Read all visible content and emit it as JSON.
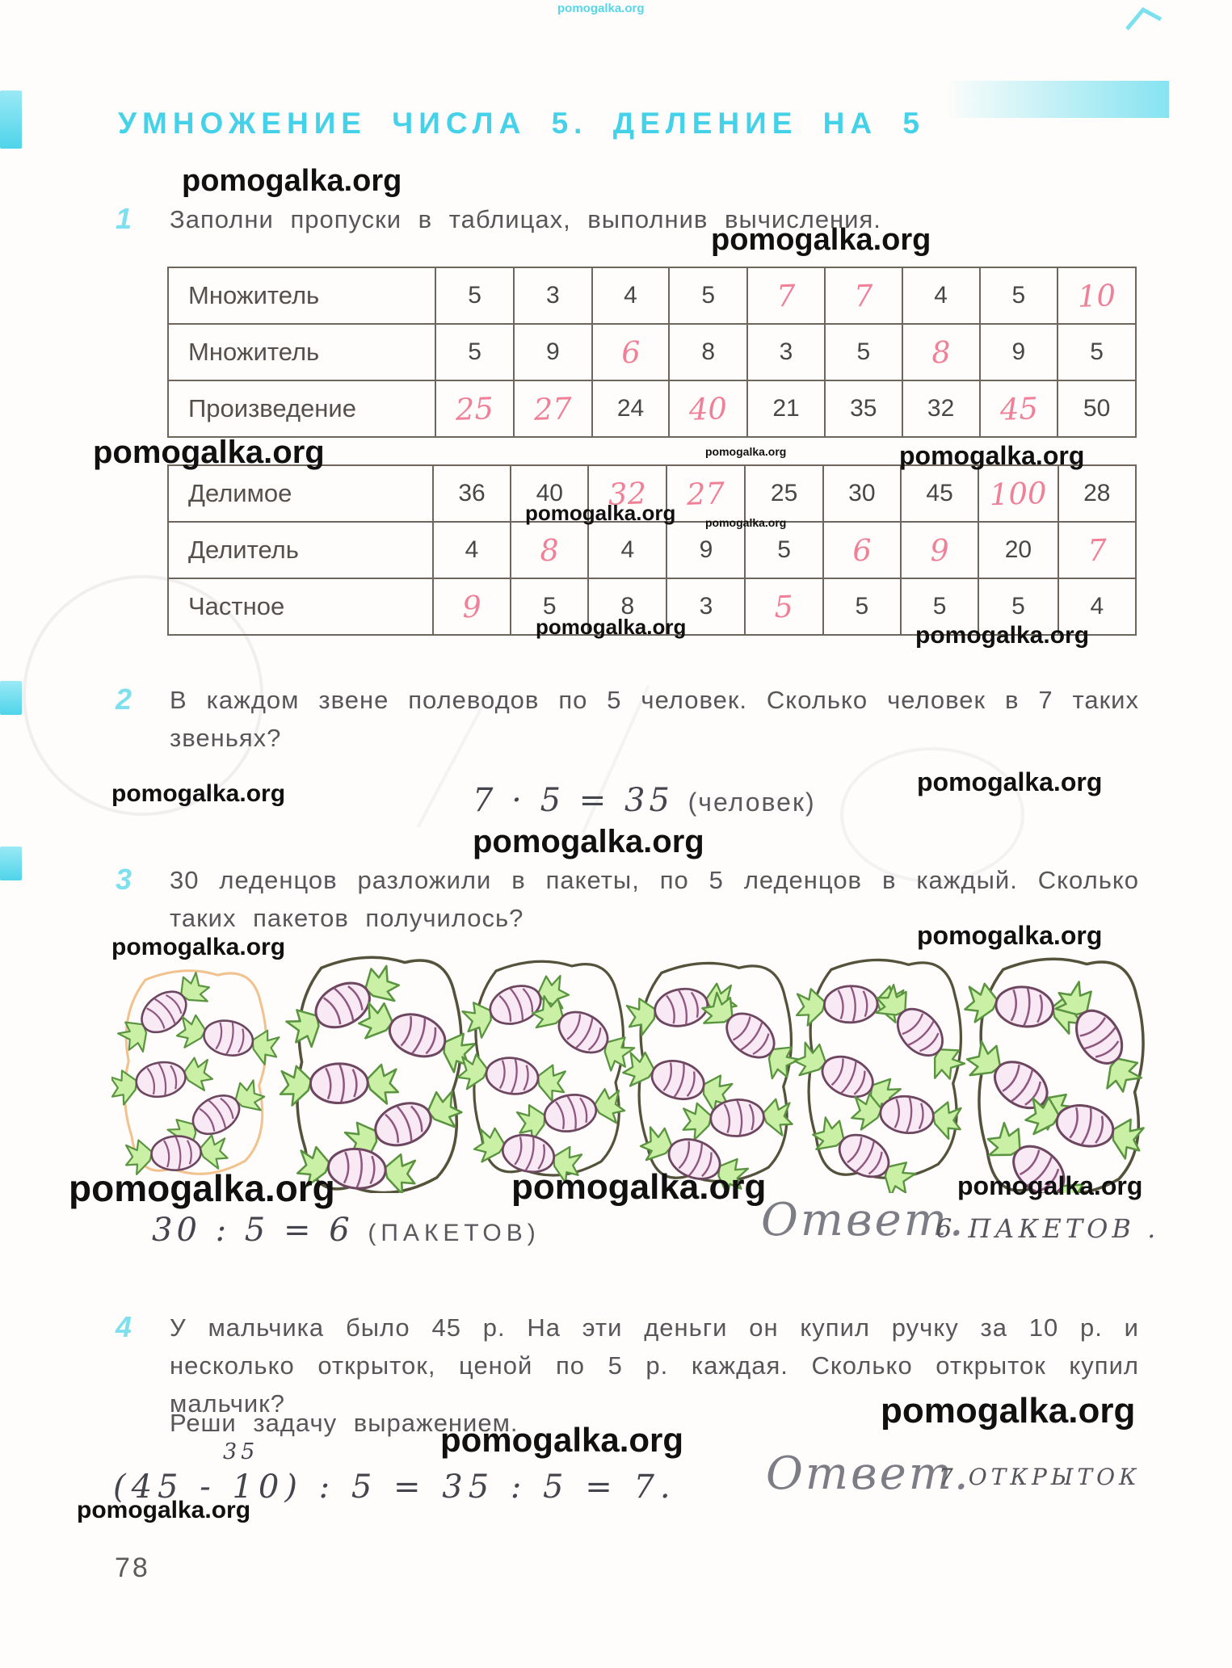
{
  "watermark": {
    "text": "pomogalka.org"
  },
  "header": {
    "title": "УМНОЖЕНИЕ ЧИСЛА 5. ДЕЛЕНИЕ НА 5"
  },
  "page": {
    "number": "78"
  },
  "tasks": {
    "t1": {
      "num": "1",
      "text": "Заполни пропуски в таблицах, выполнив вычисления."
    },
    "t2": {
      "num": "2",
      "text": "В каждом звене полеводов по 5 человек. Сколько человек в 7 таких звеньях?",
      "solution": "7 · 5 = 35",
      "solution_unit": "(человек)"
    },
    "t3": {
      "num": "3",
      "text": "30 леденцов разложили в пакеты, по 5 леденцов в каждый. Сколько таких пакетов получилось?",
      "solution": "30 : 5 = 6",
      "solution_unit": "(ПАКЕТОВ)",
      "answer_label": "Ответ.",
      "answer": "6 ПАКЕТОВ ."
    },
    "t4": {
      "num": "4",
      "text": "У мальчика было 45 р. На эти деньги он купил ручку за 10 р. и несколько открыток, ценой по 5 р. каждая. Сколько открыток купил мальчик?",
      "text2": "Реши задачу выражением.",
      "carry": "35",
      "solution": "(45 - 10) : 5 = 35 : 5 = 7.",
      "answer_label": "Ответ.",
      "answer": "7 ОТКРЫТОК"
    }
  },
  "table1": {
    "rows": [
      {
        "label": "Множитель",
        "cells": [
          {
            "v": "5",
            "h": false
          },
          {
            "v": "3",
            "h": false
          },
          {
            "v": "4",
            "h": false
          },
          {
            "v": "5",
            "h": false
          },
          {
            "v": "7",
            "h": true
          },
          {
            "v": "7",
            "h": true
          },
          {
            "v": "4",
            "h": false
          },
          {
            "v": "5",
            "h": false
          },
          {
            "v": "10",
            "h": true
          }
        ]
      },
      {
        "label": "Множитель",
        "cells": [
          {
            "v": "5",
            "h": false
          },
          {
            "v": "9",
            "h": false
          },
          {
            "v": "6",
            "h": true
          },
          {
            "v": "8",
            "h": false
          },
          {
            "v": "3",
            "h": false
          },
          {
            "v": "5",
            "h": false
          },
          {
            "v": "8",
            "h": true
          },
          {
            "v": "9",
            "h": false
          },
          {
            "v": "5",
            "h": false
          }
        ]
      },
      {
        "label": "Произведение",
        "cells": [
          {
            "v": "25",
            "h": true
          },
          {
            "v": "27",
            "h": true
          },
          {
            "v": "24",
            "h": false
          },
          {
            "v": "40",
            "h": true
          },
          {
            "v": "21",
            "h": false
          },
          {
            "v": "35",
            "h": false
          },
          {
            "v": "32",
            "h": false
          },
          {
            "v": "45",
            "h": true
          },
          {
            "v": "50",
            "h": false
          }
        ]
      }
    ]
  },
  "table2": {
    "rows": [
      {
        "label": "Делимое",
        "cells": [
          {
            "v": "36",
            "h": false
          },
          {
            "v": "40",
            "h": false
          },
          {
            "v": "32",
            "h": true
          },
          {
            "v": "27",
            "h": true
          },
          {
            "v": "25",
            "h": false
          },
          {
            "v": "30",
            "h": false
          },
          {
            "v": "45",
            "h": false
          },
          {
            "v": "100",
            "h": true
          },
          {
            "v": "28",
            "h": false
          }
        ]
      },
      {
        "label": "Делитель",
        "cells": [
          {
            "v": "4",
            "h": false
          },
          {
            "v": "8",
            "h": true
          },
          {
            "v": "4",
            "h": false
          },
          {
            "v": "9",
            "h": false
          },
          {
            "v": "5",
            "h": false
          },
          {
            "v": "6",
            "h": true
          },
          {
            "v": "9",
            "h": true
          },
          {
            "v": "20",
            "h": false
          },
          {
            "v": "7",
            "h": true
          }
        ]
      },
      {
        "label": "Частное",
        "cells": [
          {
            "v": "9",
            "h": true
          },
          {
            "v": "5",
            "h": false
          },
          {
            "v": "8",
            "h": false
          },
          {
            "v": "3",
            "h": false
          },
          {
            "v": "5",
            "h": true
          },
          {
            "v": "5",
            "h": false
          },
          {
            "v": "5",
            "h": false
          },
          {
            "v": "5",
            "h": false
          },
          {
            "v": "4",
            "h": false
          }
        ]
      }
    ]
  },
  "illustration": {
    "description": "6 bags of candies, 5 candies each",
    "bags": [
      {
        "candies": 5
      },
      {
        "candies": 5
      },
      {
        "candies": 5
      },
      {
        "candies": 5
      },
      {
        "candies": 5
      },
      {
        "candies": 5
      }
    ]
  },
  "colors": {
    "accent_cyan": "#45d2e9",
    "hand_pink": "#ef8097",
    "pencil": "#45454e",
    "table_line": "#6e665c",
    "bag1_outline": "#f2c28e",
    "bag_outline": "#55523b",
    "candy_body": "#f9e9f4",
    "candy_stripe": "#8f567e",
    "wrapper_green": "#c9f0a4",
    "wrapper_stroke": "#5a9440"
  }
}
